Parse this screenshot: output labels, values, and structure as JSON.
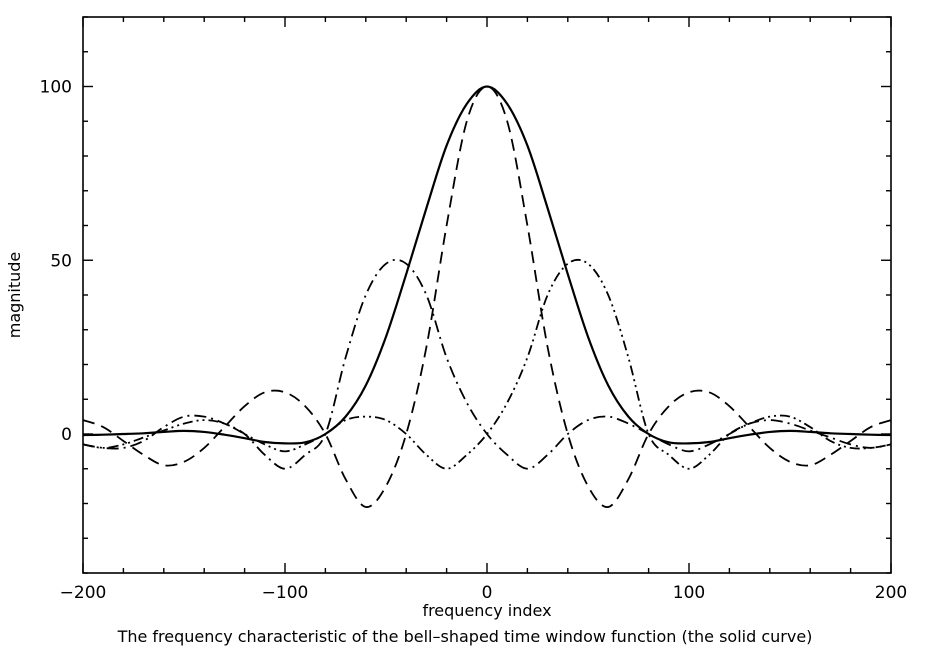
{
  "chart_data": {
    "type": "line",
    "title": "",
    "caption": "The frequency characteristic of the bell–shaped time window function (the solid curve)",
    "xlabel": "frequency index",
    "ylabel": "magnitude",
    "xlim": [
      -200,
      200
    ],
    "ylim": [
      -40,
      120
    ],
    "x_ticks": [
      -200,
      -100,
      0,
      100,
      200
    ],
    "x_tick_labels": [
      "−200",
      "−100",
      "0",
      "100",
      "200"
    ],
    "y_ticks": [
      0,
      50,
      100
    ],
    "y_tick_labels": [
      "0",
      "50",
      "100"
    ],
    "grid": false,
    "legend": "none",
    "series": [
      {
        "style": "solid",
        "x": [
          -200,
          -190,
          -180,
          -170,
          -160,
          -150,
          -140,
          -130,
          -120,
          -110,
          -100,
          -90,
          -80,
          -70,
          -60,
          -50,
          -40,
          -30,
          -20,
          -10,
          0,
          10,
          20,
          30,
          40,
          50,
          60,
          70,
          80,
          90,
          100,
          110,
          120,
          130,
          140,
          150,
          160,
          170,
          180,
          190,
          200
        ],
        "y": [
          -0.3,
          -0.2,
          0,
          0.2,
          0.6,
          0.9,
          0.6,
          -0.2,
          -1.2,
          -2.3,
          -2.7,
          -2.4,
          0,
          5,
          14,
          28,
          46,
          65,
          83,
          95,
          100,
          95,
          83,
          65,
          46,
          28,
          14,
          5,
          0,
          -2.4,
          -2.7,
          -2.3,
          -1.2,
          -0.2,
          0.6,
          0.9,
          0.6,
          0.2,
          0,
          -0.2,
          -0.3
        ]
      },
      {
        "style": "dashed",
        "x": [
          -200,
          -190,
          -180,
          -170,
          -160,
          -150,
          -140,
          -130,
          -120,
          -110,
          -100,
          -90,
          -80,
          -70,
          -60,
          -50,
          -40,
          -30,
          -20,
          -10,
          0,
          10,
          20,
          30,
          40,
          50,
          60,
          70,
          80,
          90,
          100,
          110,
          120,
          130,
          140,
          150,
          160,
          170,
          180,
          190,
          200
        ],
        "y": [
          4,
          2,
          -2,
          -6,
          -9,
          -8,
          -4,
          2,
          8,
          12,
          12,
          8,
          0,
          -13,
          -21,
          -15,
          0,
          25,
          60,
          90,
          100,
          90,
          60,
          25,
          0,
          -15,
          -21,
          -13,
          0,
          8,
          12,
          12,
          8,
          2,
          -4,
          -8,
          -9,
          -6,
          -2,
          2,
          4
        ]
      },
      {
        "style": "dash-dot",
        "x": [
          -200,
          -190,
          -180,
          -170,
          -160,
          -150,
          -140,
          -130,
          -120,
          -110,
          -100,
          -90,
          -80,
          -70,
          -60,
          -50,
          -40,
          -30,
          -20,
          -10,
          0,
          10,
          20,
          30,
          40,
          50,
          60,
          70,
          80,
          90,
          100,
          110,
          120,
          130,
          140,
          150,
          160,
          170,
          180,
          190,
          200
        ],
        "y": [
          -3,
          -4,
          -4,
          -2,
          2,
          5,
          5,
          3,
          0,
          -6,
          -10,
          -6,
          0,
          22,
          40,
          49,
          49,
          40,
          22,
          9,
          0,
          -6,
          -10,
          -6,
          0,
          4,
          5,
          3,
          0,
          -3,
          -5,
          -3,
          0,
          3,
          4,
          3,
          1,
          -1,
          -3,
          -4,
          -3
        ]
      },
      {
        "style": "dash-dot-dot",
        "x": [
          -200,
          -190,
          -180,
          -170,
          -160,
          -150,
          -140,
          -130,
          -120,
          -110,
          -100,
          -90,
          -80,
          -70,
          -60,
          -50,
          -40,
          -30,
          -20,
          -10,
          0,
          10,
          20,
          30,
          40,
          50,
          60,
          70,
          80,
          90,
          100,
          110,
          120,
          130,
          140,
          150,
          160,
          170,
          180,
          190,
          200
        ],
        "y": [
          -3,
          -4,
          -3,
          -1,
          1,
          3,
          4,
          3,
          0,
          -3,
          -5,
          -3,
          0,
          4,
          5,
          4,
          0,
          -6,
          -10,
          -6,
          0,
          9,
          22,
          40,
          49,
          49,
          40,
          22,
          0,
          -6,
          -10,
          -6,
          0,
          3,
          5,
          5,
          2,
          -2,
          -4,
          -4,
          -3
        ]
      }
    ]
  }
}
